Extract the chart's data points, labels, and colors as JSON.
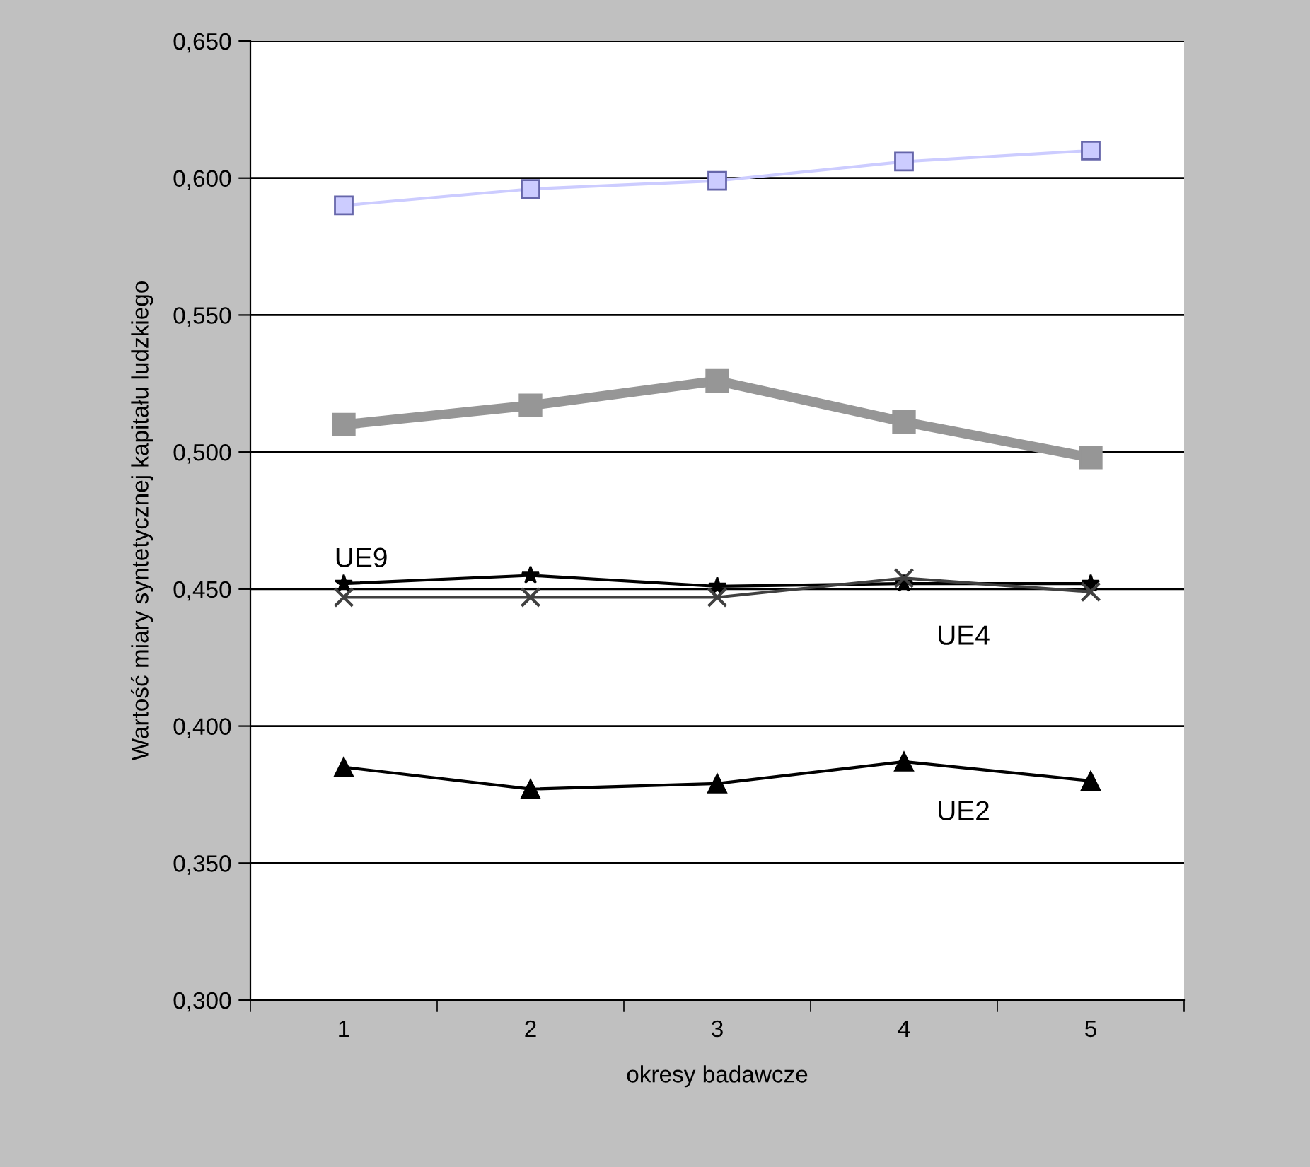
{
  "chart_data": {
    "type": "line",
    "xlabel": "okresy badawcze",
    "ylabel": "Wartość miary syntetycznej kapitału ludzkiego",
    "categories": [
      "1",
      "2",
      "3",
      "4",
      "5"
    ],
    "series": [
      {
        "color": "#ccccff",
        "marker": "square",
        "values": [
          0.59,
          0.596,
          0.599,
          0.606,
          0.61
        ]
      },
      {
        "color": "#969696",
        "marker": "square",
        "values": [
          0.51,
          0.517,
          0.526,
          0.511,
          0.498
        ]
      },
      {
        "name": "UE9",
        "color": "#000000",
        "marker": "star",
        "values": [
          0.452,
          0.455,
          0.451,
          0.452,
          0.452
        ]
      },
      {
        "name": "UE4",
        "color": "#404040",
        "marker": "cross",
        "values": [
          0.447,
          0.447,
          0.447,
          0.454,
          0.449
        ]
      },
      {
        "name": "UE2",
        "color": "#000000",
        "marker": "triangle",
        "values": [
          0.385,
          0.377,
          0.379,
          0.387,
          0.38
        ]
      }
    ],
    "ylim": [
      0.3,
      0.65
    ],
    "yticks": [
      {
        "value": 0.3,
        "label": "0,300"
      },
      {
        "value": 0.35,
        "label": "0,350"
      },
      {
        "value": 0.4,
        "label": "0,400"
      },
      {
        "value": 0.45,
        "label": "0,450"
      },
      {
        "value": 0.5,
        "label": "0,500"
      },
      {
        "value": 0.55,
        "label": "0,550"
      },
      {
        "value": 0.6,
        "label": "0,600"
      },
      {
        "value": 0.65,
        "label": "0,650"
      }
    ],
    "grid": "y",
    "legend": false,
    "line_style": "solid"
  }
}
